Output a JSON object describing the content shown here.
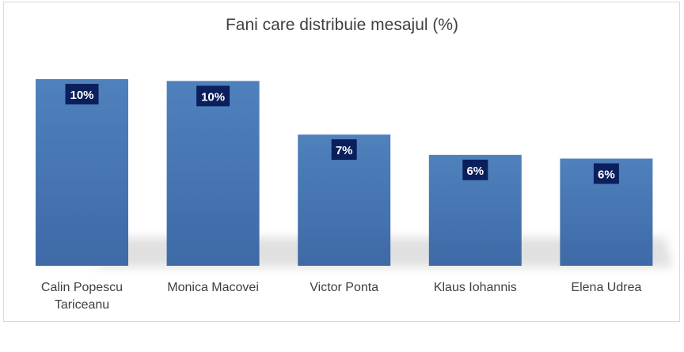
{
  "chart_data": {
    "type": "bar",
    "title": "Fani care distribuie mesajul (%)",
    "categories": [
      [
        "Calin Popescu",
        "Tariceanu"
      ],
      [
        "Monica Macovei"
      ],
      [
        "Victor Ponta"
      ],
      [
        "Klaus Iohannis"
      ],
      [
        "Elena Udrea"
      ]
    ],
    "values": [
      10.1,
      10.0,
      7.1,
      6.0,
      5.8
    ],
    "value_labels": [
      "10%",
      "10%",
      "7%",
      "6%",
      "6%"
    ],
    "ylim": [
      0,
      11
    ],
    "grid": false,
    "legend": "none",
    "colors": {
      "bar_top": "#4f81bd",
      "bar_bottom": "#3e6aa6",
      "label_bg": "#0b1f5c",
      "label_text": "#ffffff",
      "text": "#404040"
    }
  }
}
